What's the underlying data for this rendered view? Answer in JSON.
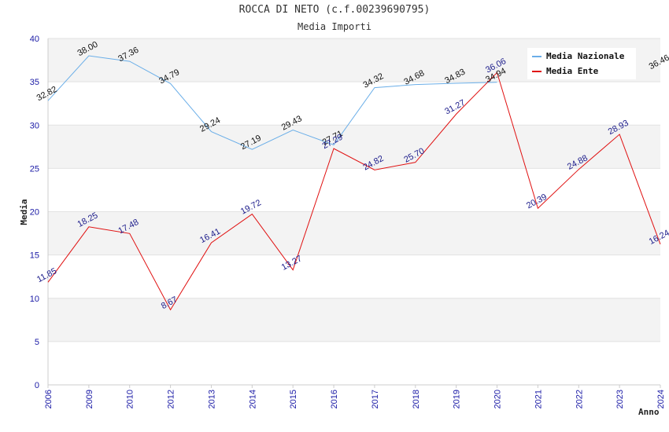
{
  "chart_data": {
    "type": "line",
    "title": "ROCCA DI NETO (c.f.00239690795)",
    "subtitle": "Media Importi",
    "xlabel": "Anno",
    "ylabel": "Media",
    "categories": [
      "2006",
      "2009",
      "2010",
      "2012",
      "2013",
      "2014",
      "2015",
      "2016",
      "2017",
      "2018",
      "2019",
      "2020",
      "2021",
      "2022",
      "2023",
      "2024"
    ],
    "ylim": [
      0,
      40
    ],
    "yticks": [
      0,
      5,
      10,
      15,
      20,
      25,
      30,
      35,
      40
    ],
    "grid": true,
    "legend_position": "top-right",
    "series": [
      {
        "name": "Media Nazionale",
        "color": "#6aaee8",
        "values": [
          32.82,
          38.0,
          37.36,
          34.79,
          29.24,
          27.19,
          29.43,
          27.71,
          34.32,
          34.68,
          34.83,
          34.94,
          null,
          null,
          null,
          36.46
        ],
        "labels": [
          "32.82",
          "38.00",
          "37.36",
          "34.79",
          "29.24",
          "27.19",
          "29.43",
          "27.71",
          "34.32",
          "34.68",
          "34.83",
          "34.94",
          null,
          null,
          null,
          "36.46"
        ]
      },
      {
        "name": "Media Ente",
        "color": "#e01010",
        "values": [
          11.85,
          18.25,
          17.48,
          8.67,
          16.41,
          19.72,
          13.27,
          27.29,
          24.82,
          25.7,
          31.27,
          36.06,
          20.39,
          24.88,
          28.93,
          16.24
        ],
        "labels": [
          "11.85",
          "18.25",
          "17.48",
          "8.67",
          "16.41",
          "19.72",
          "13.27",
          "27.29",
          "24.82",
          "25.70",
          "31.27",
          "36.06",
          "20.39",
          "24.88",
          "28.93",
          "16.24"
        ]
      }
    ]
  }
}
